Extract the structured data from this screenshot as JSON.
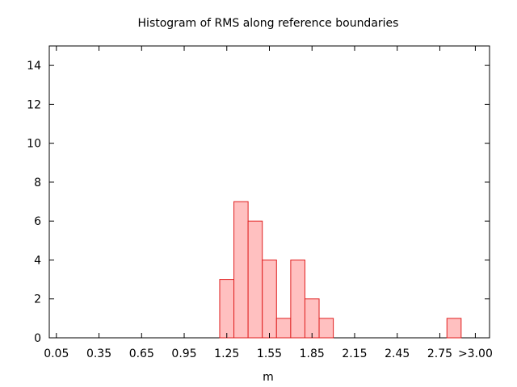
{
  "chart_data": {
    "type": "bar",
    "title": "Histogram of RMS along reference boundaries",
    "xlabel": "m",
    "ylabel": "",
    "xlim": [
      0.0,
      3.1
    ],
    "ylim": [
      0,
      15
    ],
    "grid": false,
    "x_ticks": [
      {
        "value": 0.05,
        "label": "0.05"
      },
      {
        "value": 0.35,
        "label": "0.35"
      },
      {
        "value": 0.65,
        "label": "0.65"
      },
      {
        "value": 0.95,
        "label": "0.95"
      },
      {
        "value": 1.25,
        "label": "1.25"
      },
      {
        "value": 1.55,
        "label": "1.55"
      },
      {
        "value": 1.85,
        "label": "1.85"
      },
      {
        "value": 2.15,
        "label": "2.15"
      },
      {
        "value": 2.45,
        "label": "2.45"
      },
      {
        "value": 2.75,
        "label": "2.75"
      },
      {
        "value": 3.0,
        "label": ">3.00"
      }
    ],
    "y_ticks": [
      0,
      2,
      4,
      6,
      8,
      10,
      12,
      14
    ],
    "bin_width": 0.1,
    "bins": [
      {
        "left": 1.2,
        "value": 3
      },
      {
        "left": 1.3,
        "value": 7
      },
      {
        "left": 1.4,
        "value": 6
      },
      {
        "left": 1.5,
        "value": 4
      },
      {
        "left": 1.6,
        "value": 1
      },
      {
        "left": 1.7,
        "value": 4
      },
      {
        "left": 1.8,
        "value": 2
      },
      {
        "left": 1.9,
        "value": 1
      },
      {
        "left": 2.8,
        "value": 1
      }
    ],
    "colors": {
      "fill": "#ffc0c0",
      "stroke": "#e02020"
    }
  }
}
